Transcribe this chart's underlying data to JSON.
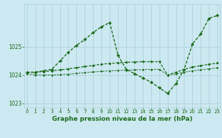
{
  "series": [
    {
      "x": [
        0,
        1,
        2,
        3,
        4,
        5,
        6,
        7,
        8,
        9,
        10,
        11,
        12,
        13,
        14,
        15,
        16,
        17,
        18,
        19,
        20,
        21,
        22,
        23
      ],
      "y": [
        1024.1,
        1024.1,
        1024.15,
        1024.2,
        1024.5,
        1024.8,
        1025.05,
        1025.25,
        1025.5,
        1025.7,
        1025.85,
        1024.7,
        1024.2,
        1024.05,
        1023.9,
        1023.75,
        1023.55,
        1023.35,
        1023.7,
        1024.2,
        1025.1,
        1025.45,
        1026.0,
        1026.1
      ],
      "color": "#1a6b1a",
      "linewidth": 1.0,
      "marker": "D",
      "markersize": 2.2
    },
    {
      "x": [
        0,
        1,
        2,
        3,
        4,
        5,
        6,
        7,
        8,
        9,
        10,
        11,
        12,
        13,
        14,
        15,
        16,
        17,
        18,
        19,
        20,
        21,
        22,
        23
      ],
      "y": [
        1024.1,
        1024.1,
        1024.12,
        1024.15,
        1024.18,
        1024.22,
        1024.26,
        1024.3,
        1024.34,
        1024.38,
        1024.41,
        1024.43,
        1024.45,
        1024.46,
        1024.47,
        1024.47,
        1024.47,
        1024.0,
        1024.1,
        1024.2,
        1024.28,
        1024.33,
        1024.38,
        1024.42
      ],
      "color": "#1a6b1a",
      "linewidth": 0.9,
      "marker": "D",
      "markersize": 1.8
    },
    {
      "x": [
        0,
        1,
        2,
        3,
        4,
        5,
        6,
        7,
        8,
        9,
        10,
        11,
        12,
        13,
        14,
        15,
        16,
        17,
        18,
        19,
        20,
        21,
        22,
        23
      ],
      "y": [
        1024.05,
        1024.0,
        1024.0,
        1024.0,
        1024.01,
        1024.03,
        1024.06,
        1024.08,
        1024.11,
        1024.13,
        1024.15,
        1024.16,
        1024.17,
        1024.18,
        1024.19,
        1024.2,
        1024.2,
        1024.0,
        1024.04,
        1024.1,
        1024.15,
        1024.18,
        1024.22,
        1024.25
      ],
      "color": "#1a6b1a",
      "linewidth": 0.7,
      "marker": "D",
      "markersize": 1.5
    }
  ],
  "xlim": [
    -0.3,
    23.3
  ],
  "ylim": [
    1022.85,
    1026.5
  ],
  "yticks": [
    1023,
    1024,
    1025
  ],
  "xticks": [
    0,
    1,
    2,
    3,
    4,
    5,
    6,
    7,
    8,
    9,
    10,
    11,
    12,
    13,
    14,
    15,
    16,
    17,
    18,
    19,
    20,
    21,
    22,
    23
  ],
  "xlabel": "Graphe pression niveau de la mer (hPa)",
  "xlabel_fontsize": 6.5,
  "xlabel_color": "#1a6b1a",
  "background_color": "#cce8f0",
  "grid_color": "#a8ccd8",
  "tick_fontsize": 5.0,
  "tick_color": "#1a6b1a",
  "ytick_fontsize": 5.5
}
